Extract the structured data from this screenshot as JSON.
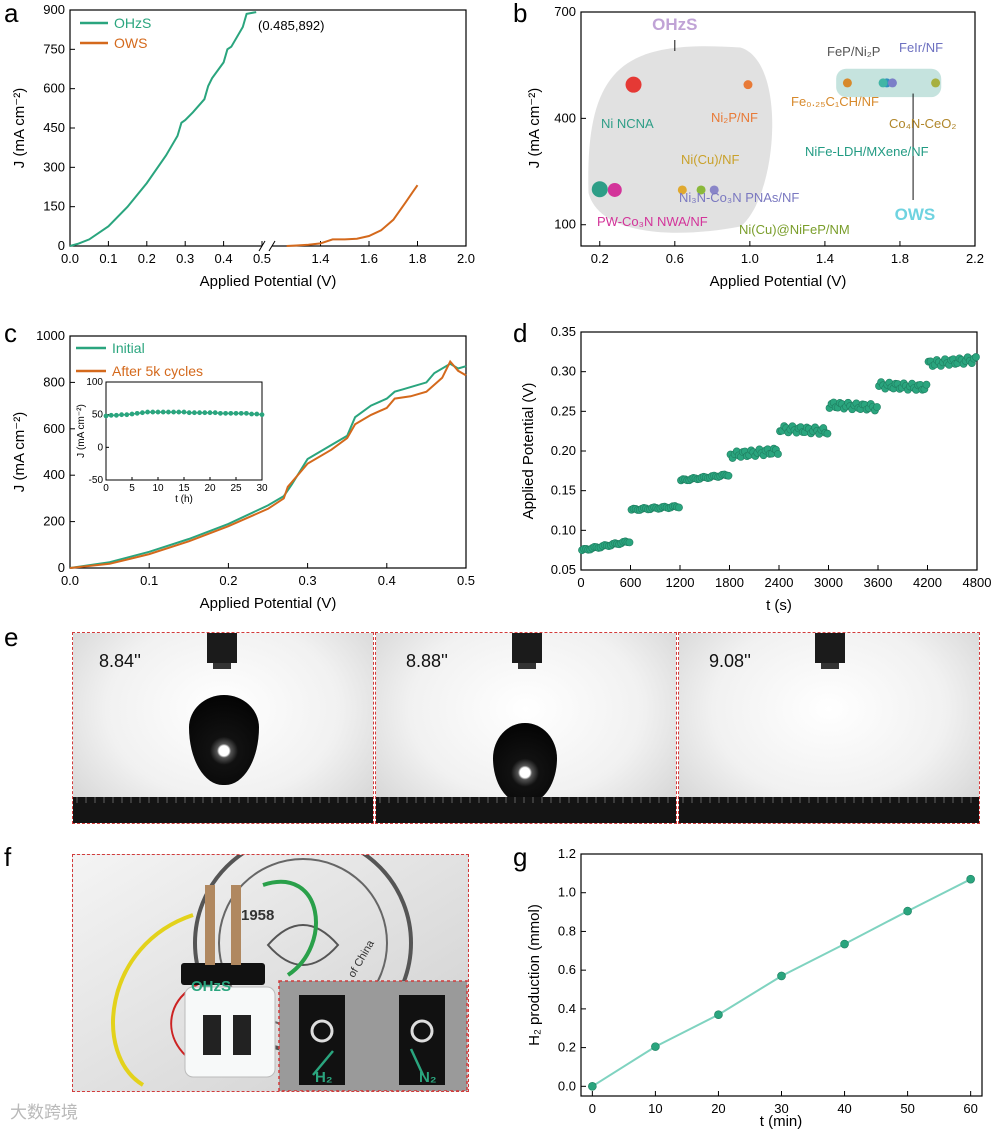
{
  "panel_labels": [
    "a",
    "b",
    "c",
    "d",
    "e",
    "f",
    "g"
  ],
  "chart_data": [
    {
      "id": "a",
      "type": "line",
      "title": "",
      "xlabel": "Applied Potential (V)",
      "ylabel": "J (mA cm⁻²)",
      "xlim_left": [
        0,
        0.5
      ],
      "xlim_right": [
        1.2,
        2.0
      ],
      "ylim": [
        0,
        900
      ],
      "xticks": [
        "0.0",
        "0.1",
        "0.2",
        "0.3",
        "0.4",
        "0.5",
        "1.4",
        "1.6",
        "1.8",
        "2.0"
      ],
      "yticks": [
        "0",
        "150",
        "300",
        "450",
        "600",
        "750",
        "900"
      ],
      "annotation": "(0.485,892)",
      "series": [
        {
          "name": "OHzS",
          "color": "#2aa57e",
          "x": [
            0,
            0.02,
            0.05,
            0.1,
            0.15,
            0.2,
            0.25,
            0.28,
            0.29,
            0.3,
            0.32,
            0.35,
            0.36,
            0.37,
            0.4,
            0.41,
            0.42,
            0.45,
            0.46,
            0.485
          ],
          "y": [
            0,
            8,
            25,
            75,
            150,
            240,
            345,
            420,
            470,
            480,
            510,
            560,
            610,
            640,
            700,
            750,
            760,
            835,
            885,
            892
          ]
        },
        {
          "name": "OWS",
          "color": "#d4691c",
          "x": [
            1.26,
            1.3,
            1.35,
            1.4,
            1.45,
            1.5,
            1.55,
            1.6,
            1.65,
            1.7,
            1.75,
            1.78,
            1.8
          ],
          "y": [
            0,
            2,
            5,
            10,
            25,
            25,
            28,
            38,
            60,
            100,
            165,
            205,
            232
          ]
        }
      ]
    },
    {
      "id": "b",
      "type": "scatter",
      "xlabel": "Applied Potential (V)",
      "ylabel": "J (mA cm⁻²)",
      "xlim": [
        0.1,
        2.2
      ],
      "ylim": [
        40,
        700
      ],
      "xticks": [
        "0.2",
        "0.6",
        "1.0",
        "1.4",
        "1.8",
        "2.2"
      ],
      "yticks": [
        "100",
        "400",
        "700"
      ],
      "group_labels": [
        "OHzS",
        "OWS"
      ],
      "points": [
        {
          "label": "Ni NCNA",
          "x": 0.38,
          "y": 495,
          "color": "#e53935"
        },
        {
          "label": "Ni₂P/NF",
          "x": 0.99,
          "y": 495,
          "color": "#e87a37"
        },
        {
          "label": "PW-Co₃N NWA/NF",
          "x": 0.28,
          "y": 198,
          "color": "#d3349a"
        },
        {
          "label": "",
          "x": 0.2,
          "y": 200,
          "color": "#2e9e87"
        },
        {
          "label": "Ni(Cu)/NF",
          "x": 0.64,
          "y": 198,
          "color": "#e0a92f"
        },
        {
          "label": "Ni₃N-Co₃N PNAs/NF",
          "x": 0.81,
          "y": 198,
          "color": "#8a86c8"
        },
        {
          "label": "Ni(Cu)@NiFeP/NM",
          "x": 0.74,
          "y": 198,
          "color": "#8ab83a"
        },
        {
          "label": "Fe₀.₂₅C₁CH/NF",
          "x": 1.52,
          "y": 500,
          "color": "#d7892b"
        },
        {
          "label": "FeP/Ni₂P",
          "x": 1.73,
          "y": 500,
          "color": "#2f8fc0"
        },
        {
          "label": "FeIr/NF",
          "x": 1.76,
          "y": 500,
          "color": "#7b7fc8"
        },
        {
          "label": "NiFe-LDH/MXene/NF",
          "x": 1.71,
          "y": 500,
          "color": "#41b5a5"
        },
        {
          "label": "Co₄N-CeO₂",
          "x": 1.99,
          "y": 500,
          "color": "#a7b040"
        }
      ]
    },
    {
      "id": "c",
      "type": "line",
      "xlabel": "Applied Potential (V)",
      "ylabel": "J (mA cm⁻²)",
      "xlim": [
        0,
        0.5
      ],
      "ylim": [
        0,
        1000
      ],
      "xticks": [
        "0.0",
        "0.1",
        "0.2",
        "0.3",
        "0.4",
        "0.5"
      ],
      "yticks": [
        "0",
        "200",
        "400",
        "600",
        "800",
        "1000"
      ],
      "series": [
        {
          "name": "Initial",
          "color": "#2aa57e",
          "x": [
            0,
            0.05,
            0.1,
            0.15,
            0.2,
            0.25,
            0.27,
            0.28,
            0.3,
            0.33,
            0.35,
            0.36,
            0.38,
            0.4,
            0.41,
            0.42,
            0.45,
            0.46,
            0.48,
            0.49,
            0.5
          ],
          "y": [
            0,
            25,
            70,
            125,
            190,
            270,
            310,
            360,
            470,
            530,
            570,
            650,
            700,
            730,
            760,
            770,
            800,
            840,
            880,
            860,
            870
          ]
        },
        {
          "name": "After 5k cycles",
          "color": "#d4691c",
          "x": [
            0,
            0.05,
            0.1,
            0.15,
            0.2,
            0.25,
            0.27,
            0.275,
            0.28,
            0.3,
            0.33,
            0.35,
            0.36,
            0.38,
            0.4,
            0.41,
            0.43,
            0.45,
            0.47,
            0.48,
            0.49,
            0.5
          ],
          "y": [
            0,
            18,
            60,
            115,
            180,
            255,
            300,
            350,
            370,
            450,
            510,
            560,
            620,
            660,
            690,
            730,
            740,
            760,
            820,
            890,
            850,
            830
          ]
        }
      ],
      "inset": {
        "xlabel": "t (h)",
        "ylabel": "J (mA cm⁻²)",
        "xlim": [
          0,
          30
        ],
        "ylim": [
          -50,
          100
        ],
        "xticks": [
          "0",
          "5",
          "10",
          "15",
          "20",
          "25",
          "30"
        ],
        "yticks": [
          "-50",
          "0",
          "50",
          "100"
        ],
        "x": [
          0,
          1,
          2,
          3,
          4,
          5,
          6,
          7,
          8,
          9,
          10,
          11,
          12,
          13,
          14,
          15,
          16,
          17,
          18,
          19,
          20,
          21,
          22,
          23,
          24,
          25,
          26,
          27,
          28,
          29,
          30
        ],
        "y": [
          48,
          49,
          49,
          50,
          50,
          51,
          52,
          53,
          54,
          54,
          54,
          54,
          54,
          54,
          54,
          54,
          53,
          53,
          53,
          53,
          53,
          53,
          52,
          52,
          52,
          52,
          52,
          52,
          51,
          51,
          50
        ],
        "color": "#2aa57e"
      }
    },
    {
      "id": "d",
      "type": "scatter",
      "xlabel": "t (s)",
      "ylabel": "Applied Potential (V)",
      "xlim": [
        0,
        4800
      ],
      "ylim": [
        0.05,
        0.35
      ],
      "xticks": [
        "0",
        "600",
        "1200",
        "1800",
        "2400",
        "3000",
        "3600",
        "4200",
        "4800"
      ],
      "yticks": [
        "0.05",
        "0.10",
        "0.15",
        "0.20",
        "0.25",
        "0.30",
        "0.35"
      ],
      "color": "#2aa57e",
      "segments": [
        {
          "t0": 0,
          "t1": 600,
          "v0": 0.075,
          "v1": 0.086
        },
        {
          "t0": 600,
          "t1": 1200,
          "v0": 0.126,
          "v1": 0.13
        },
        {
          "t0": 1200,
          "t1": 1800,
          "v0": 0.163,
          "v1": 0.17
        },
        {
          "t0": 1800,
          "t1": 2400,
          "v0": 0.195,
          "v1": 0.2
        },
        {
          "t0": 2400,
          "t1": 3000,
          "v0": 0.228,
          "v1": 0.225
        },
        {
          "t0": 3000,
          "t1": 3600,
          "v0": 0.258,
          "v1": 0.255
        },
        {
          "t0": 3600,
          "t1": 4200,
          "v0": 0.283,
          "v1": 0.28
        },
        {
          "t0": 4200,
          "t1": 4800,
          "v0": 0.31,
          "v1": 0.315
        }
      ]
    },
    {
      "id": "g",
      "type": "line",
      "xlabel": "t (min)",
      "ylabel": "H₂ production (mmol)",
      "xlim": [
        0,
        60
      ],
      "ylim": [
        0,
        1.2
      ],
      "xticks": [
        "0",
        "10",
        "20",
        "30",
        "40",
        "50",
        "60"
      ],
      "yticks": [
        "0.0",
        "0.2",
        "0.4",
        "0.6",
        "0.8",
        "1.0",
        "1.2"
      ],
      "x": [
        0,
        10,
        20,
        30,
        40,
        50,
        60
      ],
      "y": [
        0,
        0.205,
        0.37,
        0.57,
        0.735,
        0.905,
        1.07
      ],
      "color": "#2aa57e"
    }
  ],
  "photos_e": {
    "times": [
      "8.84''",
      "8.88''",
      "9.08''"
    ]
  },
  "photo_f": {
    "device_label": "OHzS",
    "badge_text": "1958",
    "seal_text": "of China",
    "h2_label": "H₂",
    "n2_label": "N₂"
  },
  "watermark": "大数跨境"
}
